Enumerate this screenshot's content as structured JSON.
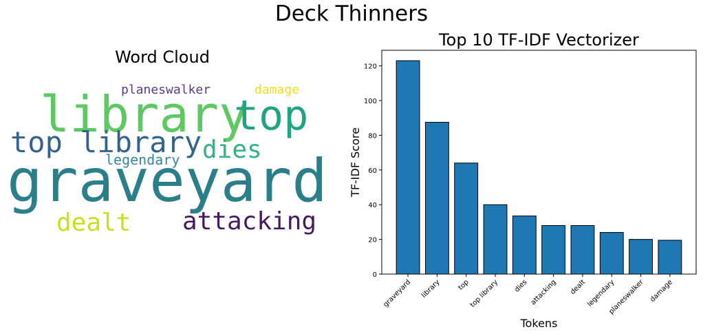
{
  "suptitle": "Deck Thinners",
  "wordcloud": {
    "title": "Word Cloud",
    "words": [
      {
        "text": "graveyard",
        "color": "#2a7f8a"
      },
      {
        "text": "library",
        "color": "#5ec962"
      },
      {
        "text": "top",
        "color": "#21a386"
      },
      {
        "text": "top library",
        "color": "#33638d"
      },
      {
        "text": "dies",
        "color": "#2fb57d"
      },
      {
        "text": "legendary",
        "color": "#33889a"
      },
      {
        "text": "planeswalker",
        "color": "#5b3a8e"
      },
      {
        "text": "damage",
        "color": "#e7e419"
      },
      {
        "text": "dealt",
        "color": "#c9e020"
      },
      {
        "text": "attacking",
        "color": "#46185f"
      }
    ]
  },
  "chart_data": {
    "type": "bar",
    "title": "Top 10 TF-IDF Vectorizer",
    "xlabel": "Tokens",
    "ylabel": "TF-IDF Score",
    "categories": [
      "graveyard",
      "library",
      "top",
      "top library",
      "dies",
      "attacking",
      "dealt",
      "legendary",
      "planeswalker",
      "damage"
    ],
    "values": [
      123,
      87.5,
      64,
      40,
      33.5,
      28,
      28,
      24,
      20,
      19.5
    ],
    "ylim": [
      0,
      129
    ],
    "yticks": [
      0,
      20,
      40,
      60,
      80,
      100,
      120
    ],
    "bar_color": "#1f77b4",
    "edge_color": "#000000",
    "grid": false
  }
}
